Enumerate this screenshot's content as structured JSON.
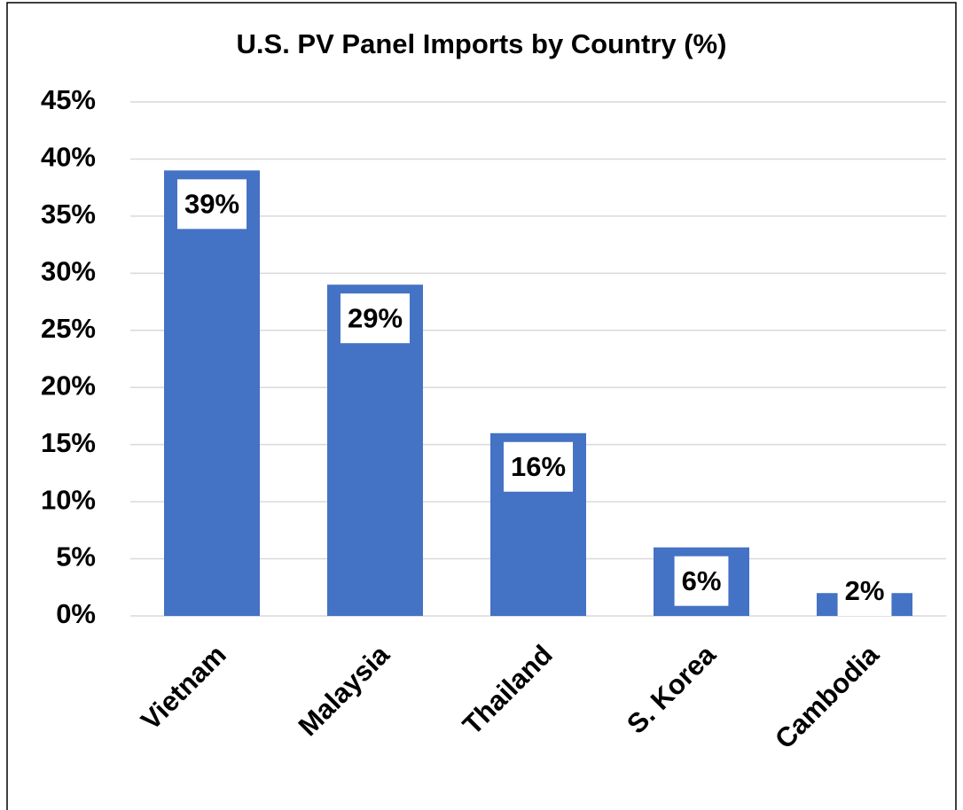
{
  "chart_data": {
    "type": "bar",
    "title": "U.S. PV Panel Imports by Country (%)",
    "categories": [
      "Vietnam",
      "Malaysia",
      "Thailand",
      "S. Korea",
      "Cambodia"
    ],
    "values": [
      39,
      29,
      16,
      6,
      2
    ],
    "value_labels": [
      "39%",
      "29%",
      "16%",
      "6%",
      "2%"
    ],
    "color": "#4472c4",
    "ylim": [
      0,
      45
    ],
    "yticks": [
      {
        "value": 0,
        "label": "0%"
      },
      {
        "value": 5,
        "label": "5%"
      },
      {
        "value": 10,
        "label": "10%"
      },
      {
        "value": 15,
        "label": "15%"
      },
      {
        "value": 20,
        "label": "20%"
      },
      {
        "value": 25,
        "label": "25%"
      },
      {
        "value": 30,
        "label": "30%"
      },
      {
        "value": 35,
        "label": "35%"
      },
      {
        "value": 40,
        "label": "40%"
      },
      {
        "value": 45,
        "label": "45%"
      }
    ],
    "grid": true
  }
}
